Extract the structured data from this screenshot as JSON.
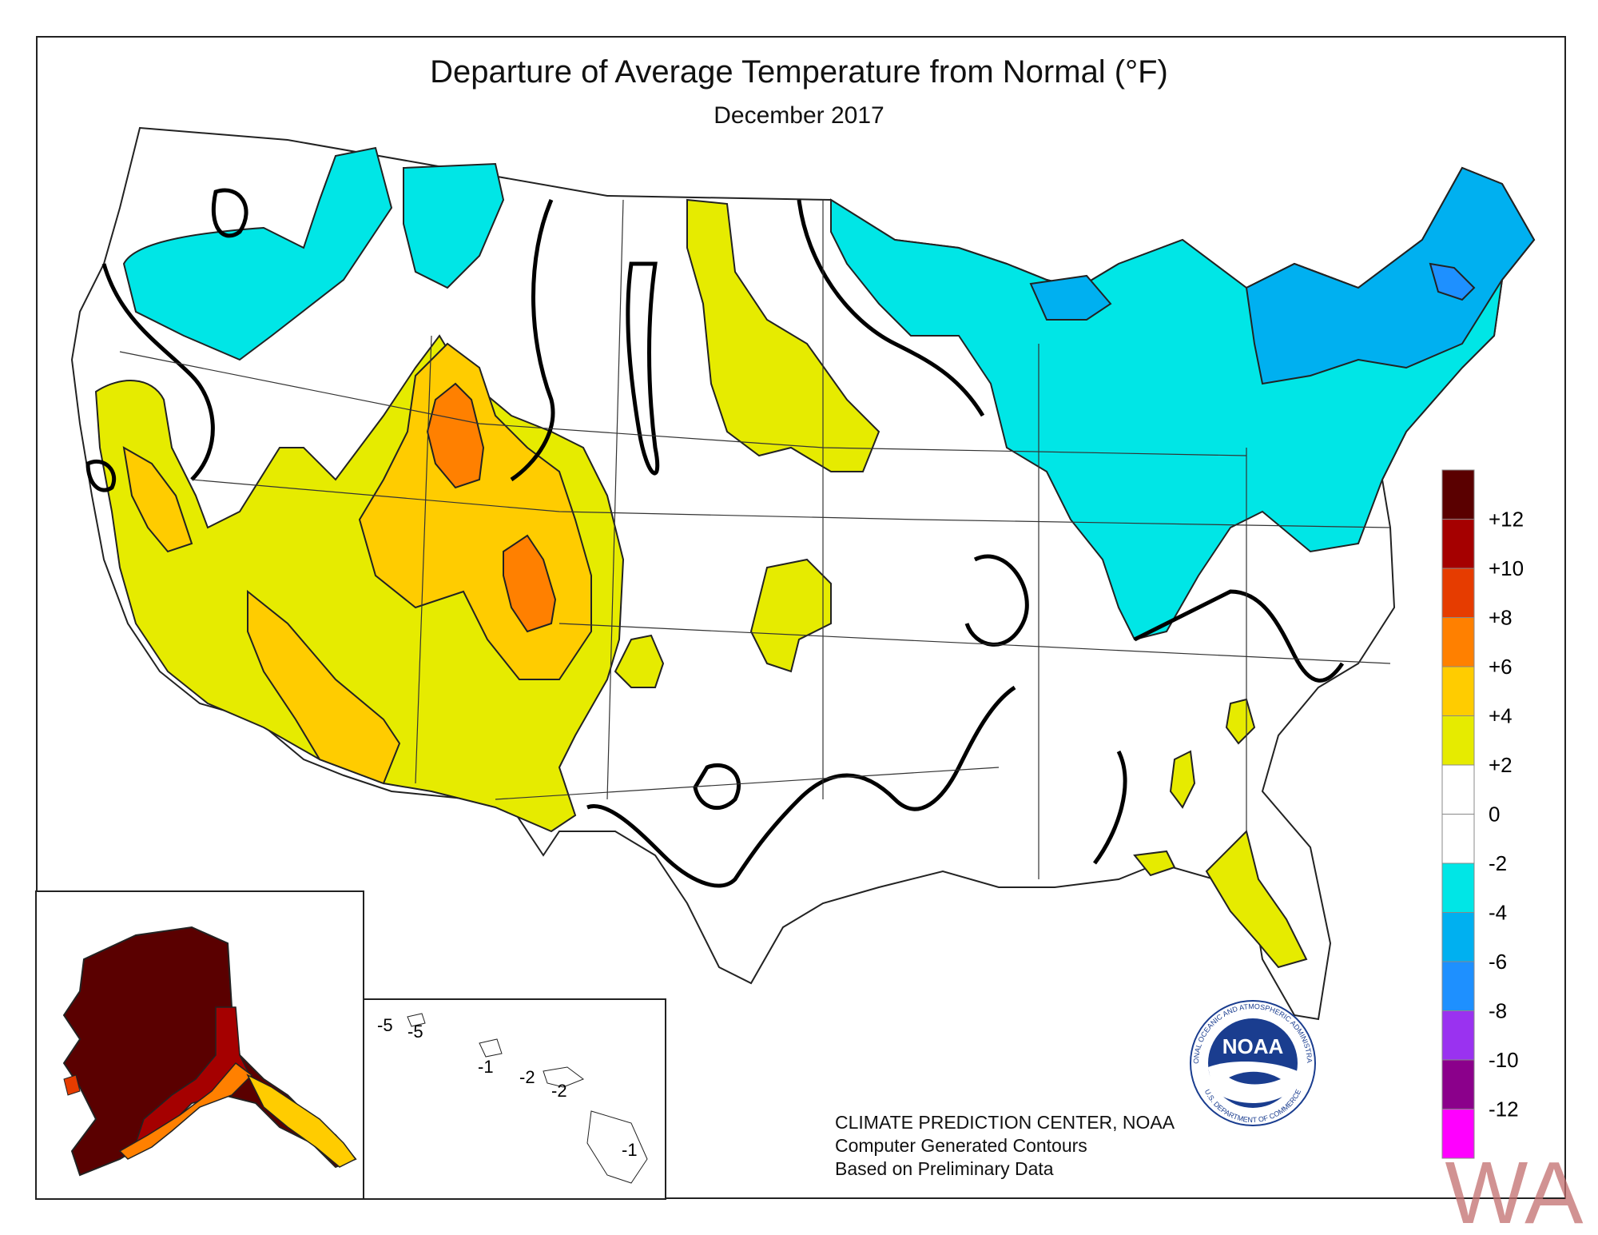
{
  "header": {
    "title": "Departure of Average Temperature from Normal (°F)",
    "subtitle": "December 2017"
  },
  "legend": {
    "levels": [
      {
        "label": "+12",
        "color": "#5a0000"
      },
      {
        "label": "+10",
        "color": "#a50000"
      },
      {
        "label": "+8",
        "color": "#e63c00"
      },
      {
        "label": "+6",
        "color": "#ff8000"
      },
      {
        "label": "+4",
        "color": "#ffcc00"
      },
      {
        "label": "+2",
        "color": "#e6eb00"
      },
      {
        "label": "0",
        "color": "#ffffff"
      },
      {
        "label": "-2",
        "color": "#ffffff"
      },
      {
        "label": "-4",
        "color": "#00e6e6"
      },
      {
        "label": "-6",
        "color": "#00b0f0"
      },
      {
        "label": "-8",
        "color": "#1e90ff"
      },
      {
        "label": "-10",
        "color": "#9a32f0"
      },
      {
        "label": "-12",
        "color": "#8b008b"
      }
    ],
    "bottom_color": "#ff00ff"
  },
  "hawaii_labels": [
    "-5",
    "-5",
    "-1",
    "-2",
    "-2",
    "-1"
  ],
  "credits": {
    "line1": "CLIMATE PREDICTION CENTER, NOAA",
    "line2": "Computer Generated Contours",
    "line3": "Based on Preliminary Data"
  },
  "logo": {
    "text": "NOAA",
    "ring_text_top": "NATIONAL OCEANIC AND ATMOSPHERIC ADMINISTRATION",
    "ring_text_bottom": "U.S. DEPARTMENT OF COMMERCE"
  },
  "watermark": "WA",
  "colors": {
    "warm_yellow": "#e6eb00",
    "warm_orange": "#ffcc00",
    "hot_orange": "#ff8000",
    "cool_cyan": "#00e6e6",
    "cold_blue": "#00b0f0",
    "colder_blue": "#1e90ff",
    "alaska_dark": "#5a0000"
  }
}
